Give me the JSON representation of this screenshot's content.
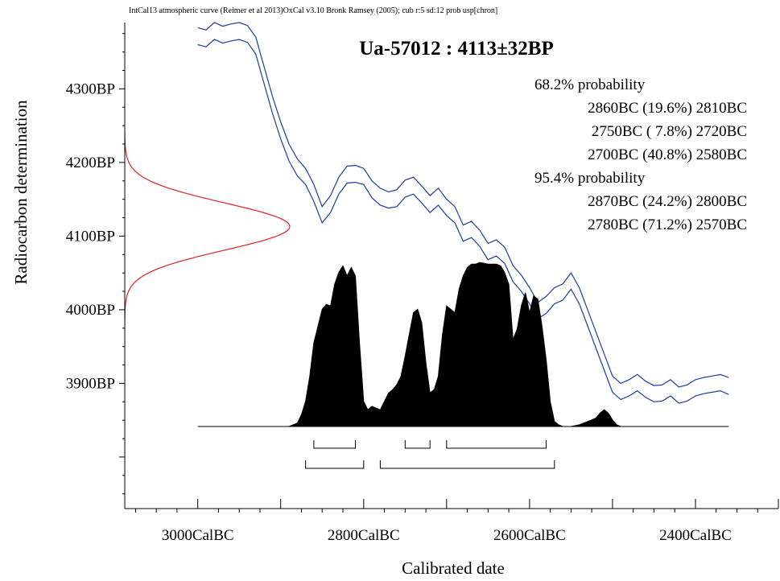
{
  "header": "IntCal13 atmospheric curve (Reimer et al 2013)OxCal v3.10 Bronk Ramsey (2005); cub r:5 sd:12 prob usp[chron]",
  "chart_data": {
    "type": "area",
    "title": "Ua-57012 : 4113±32BP",
    "xlabel": "Calibrated date",
    "ylabel": "Radiocarbon determination",
    "x_unit": "CalBC (year)",
    "y_unit": "BP (year)",
    "xlim": [
      3088,
      2300
    ],
    "ylim": [
      3730,
      4390
    ],
    "x_ticks": [
      3000,
      2800,
      2600,
      2400
    ],
    "x_tick_labels": [
      "3000CalBC",
      "2800CalBC",
      "2600CalBC",
      "2400CalBC"
    ],
    "y_ticks": [
      4300,
      4200,
      4100,
      4000,
      3900
    ],
    "y_tick_labels": [
      "4300BP",
      "4200BP",
      "4100BP",
      "4000BP",
      "3900BP"
    ],
    "measurement": {
      "mean": 4113,
      "sd": 32
    },
    "probability_text": [
      "68.2% probability",
      "2860BC (19.6%) 2810BC",
      "2750BC ( 7.8%) 2720BC",
      "2700BC (40.8%) 2580BC",
      "95.4% probability",
      "2870BC (24.2%) 2800BC",
      "2780BC (71.2%) 2570BC"
    ],
    "ranges_68": [
      [
        2860,
        2810
      ],
      [
        2750,
        2720
      ],
      [
        2700,
        2580
      ]
    ],
    "ranges_95": [
      [
        2870,
        2800
      ],
      [
        2780,
        2570
      ]
    ],
    "calibration_curve": {
      "x": [
        3000,
        2990,
        2980,
        2970,
        2960,
        2950,
        2940,
        2930,
        2920,
        2910,
        2900,
        2890,
        2880,
        2870,
        2860,
        2850,
        2840,
        2830,
        2820,
        2810,
        2800,
        2790,
        2780,
        2770,
        2760,
        2750,
        2740,
        2730,
        2720,
        2710,
        2700,
        2690,
        2680,
        2670,
        2660,
        2650,
        2640,
        2630,
        2620,
        2610,
        2600,
        2590,
        2580,
        2570,
        2560,
        2550,
        2540,
        2530,
        2520,
        2510,
        2500,
        2490,
        2480,
        2470,
        2460,
        2450,
        2440,
        2430,
        2420,
        2410,
        2400,
        2390,
        2380,
        2370,
        2360
      ],
      "upper": [
        4383,
        4380,
        4390,
        4385,
        4388,
        4390,
        4386,
        4370,
        4330,
        4290,
        4255,
        4225,
        4205,
        4192,
        4170,
        4140,
        4155,
        4180,
        4195,
        4196,
        4192,
        4175,
        4165,
        4160,
        4163,
        4176,
        4180,
        4168,
        4155,
        4165,
        4150,
        4140,
        4115,
        4120,
        4108,
        4090,
        4095,
        4085,
        4060,
        4047,
        4030,
        4010,
        4018,
        4030,
        4035,
        4050,
        4030,
        4000,
        3970,
        3940,
        3910,
        3900,
        3905,
        3912,
        3903,
        3897,
        3898,
        3905,
        3895,
        3898,
        3905,
        3908,
        3910,
        3912,
        3908
      ],
      "lower": [
        4360,
        4357,
        4367,
        4362,
        4365,
        4367,
        4363,
        4347,
        4307,
        4267,
        4232,
        4202,
        4182,
        4170,
        4147,
        4118,
        4132,
        4157,
        4172,
        4173,
        4170,
        4152,
        4142,
        4138,
        4140,
        4153,
        4157,
        4145,
        4132,
        4142,
        4128,
        4118,
        4093,
        4098,
        4086,
        4068,
        4073,
        4063,
        4038,
        4025,
        4008,
        3988,
        3995,
        4008,
        4013,
        4028,
        4008,
        3978,
        3948,
        3918,
        3888,
        3878,
        3883,
        3890,
        3881,
        3875,
        3876,
        3883,
        3873,
        3876,
        3883,
        3886,
        3888,
        3890,
        3885
      ]
    },
    "posterior_distribution": {
      "x": [
        3000,
        2890,
        2880,
        2875,
        2870,
        2865,
        2860,
        2850,
        2845,
        2840,
        2835,
        2830,
        2825,
        2820,
        2815,
        2810,
        2805,
        2800,
        2795,
        2790,
        2780,
        2775,
        2770,
        2765,
        2760,
        2755,
        2750,
        2745,
        2740,
        2735,
        2730,
        2725,
        2720,
        2715,
        2710,
        2705,
        2700,
        2695,
        2690,
        2685,
        2680,
        2675,
        2670,
        2665,
        2660,
        2650,
        2640,
        2635,
        2630,
        2625,
        2620,
        2615,
        2610,
        2605,
        2600,
        2595,
        2590,
        2585,
        2580,
        2575,
        2570,
        2565,
        2560,
        2550,
        2540,
        2530,
        2520,
        2515,
        2510,
        2505,
        2500,
        2495,
        2490,
        2480,
        2360
      ],
      "y": [
        0,
        0,
        0.02,
        0.07,
        0.15,
        0.3,
        0.5,
        0.7,
        0.73,
        0.72,
        0.85,
        0.92,
        0.96,
        0.9,
        0.95,
        0.9,
        0.5,
        0.15,
        0.1,
        0.12,
        0.1,
        0.15,
        0.2,
        0.22,
        0.25,
        0.3,
        0.42,
        0.55,
        0.68,
        0.7,
        0.62,
        0.38,
        0.2,
        0.22,
        0.3,
        0.55,
        0.72,
        0.7,
        0.68,
        0.82,
        0.9,
        0.95,
        0.97,
        0.97,
        0.98,
        0.97,
        0.97,
        0.96,
        0.92,
        0.85,
        0.52,
        0.58,
        0.72,
        0.8,
        0.68,
        0.78,
        0.76,
        0.6,
        0.4,
        0.15,
        0.03,
        0.01,
        0,
        0,
        0.01,
        0.03,
        0.05,
        0.08,
        0.1,
        0.08,
        0.04,
        0.01,
        0,
        0,
        0
      ]
    },
    "measurement_curve_color": "#e02020",
    "calibration_curve_color": "#1f3b9c",
    "posterior_fill_color": "#000000",
    "grid": false
  }
}
